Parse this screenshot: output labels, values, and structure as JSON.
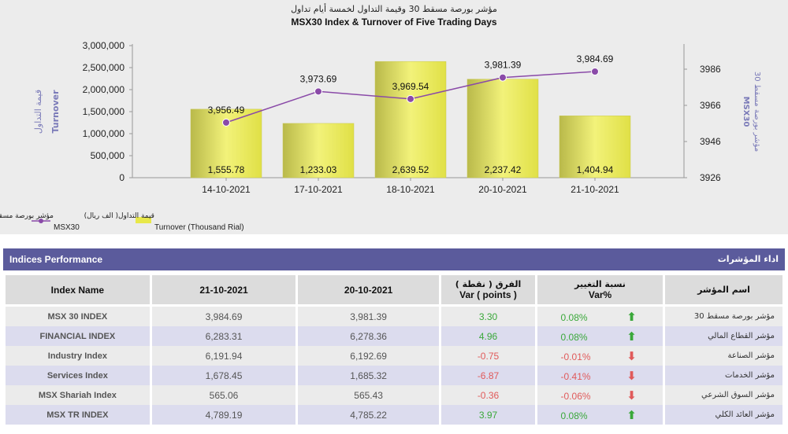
{
  "chart_data": {
    "type": "bar",
    "title_ar": "مؤشر بورصة مسقط 30 وقيمة التداول لخمسة أيام تداول",
    "title": "MSX30 Index & Turnover of Five Trading Days",
    "categories": [
      "14-10-2021",
      "17-10-2021",
      "18-10-2021",
      "20-10-2021",
      "21-10-2021"
    ],
    "series": [
      {
        "name": "Turnover (Thousand Rial)",
        "name_ar": "قيمة التداول( الف ريال)",
        "type": "bar",
        "color": "#e8e84a",
        "values": [
          1555.78,
          1233.03,
          2639.52,
          2237.42,
          1404.94
        ],
        "labels": [
          "1,555.78",
          "1,233.03",
          "2,639.52",
          "2,237.42",
          "1,404.94"
        ]
      },
      {
        "name": "MSX30",
        "name_ar": "مؤشر بورصة مسقط 30",
        "type": "line",
        "color": "#8a4aa8",
        "values": [
          3956.49,
          3973.69,
          3969.54,
          3981.39,
          3984.69
        ],
        "labels": [
          "3,956.49",
          "3,973.69",
          "3,969.54",
          "3,981.39",
          "3,984.69"
        ]
      }
    ],
    "y_left": {
      "label": "Turnover",
      "label_ar": "قيمة التداول",
      "min": 0,
      "max": 3000000,
      "ticks": [
        0,
        500000,
        1000000,
        1500000,
        2000000,
        2500000,
        3000000
      ],
      "tick_labels": [
        "0",
        "500,000",
        "1,000,000",
        "1,500,000",
        "2,000,000",
        "2,500,000",
        "3,000,000"
      ]
    },
    "y_right": {
      "label": "MSX30",
      "label_ar": "مؤشر بورصة مسقط 30",
      "min": 3926,
      "max": 3986,
      "ticks": [
        3926,
        3946,
        3966,
        3986
      ],
      "tick_labels": [
        "3926",
        "3946",
        "3966",
        "3986"
      ]
    },
    "legend_position": "bottom-left"
  },
  "performance": {
    "header_en": "Indices Performance",
    "header_ar": "اداء المؤشرات",
    "columns": {
      "index_name": "Index Name",
      "date1": "21-10-2021",
      "date2": "20-10-2021",
      "var_ar": "الفرق ( نقطة )",
      "var_en": "Var ( points )",
      "varpct_ar": "نسبة التغيير",
      "varpct_en": "Var%",
      "name_ar": "اسم المؤشر"
    },
    "rows": [
      {
        "name": "MSX 30 INDEX",
        "v1": "3,984.69",
        "v2": "3,981.39",
        "var": "3.30",
        "pct": "0.08%",
        "dir": "up",
        "ar": "مؤشر بورصة مسقط 30"
      },
      {
        "name": "FINANCIAL INDEX",
        "v1": "6,283.31",
        "v2": "6,278.36",
        "var": "4.96",
        "pct": "0.08%",
        "dir": "up",
        "ar": "مؤشر القطاع المالي"
      },
      {
        "name": "Industry Index",
        "v1": "6,191.94",
        "v2": "6,192.69",
        "var": "-0.75",
        "pct": "-0.01%",
        "dir": "down",
        "ar": "مؤشر الصناعة"
      },
      {
        "name": "Services Index",
        "v1": "1,678.45",
        "v2": "1,685.32",
        "var": "-6.87",
        "pct": "-0.41%",
        "dir": "down",
        "ar": "مؤشر الخدمات"
      },
      {
        "name": "MSX Shariah Index",
        "v1": "565.06",
        "v2": "565.43",
        "var": "-0.36",
        "pct": "-0.06%",
        "dir": "down",
        "ar": "مؤشر السوق الشرعي"
      },
      {
        "name": "MSX TR INDEX",
        "v1": "4,789.19",
        "v2": "4,785.22",
        "var": "3.97",
        "pct": "0.08%",
        "dir": "up",
        "ar": "مؤشر العائد الكلي"
      }
    ]
  }
}
